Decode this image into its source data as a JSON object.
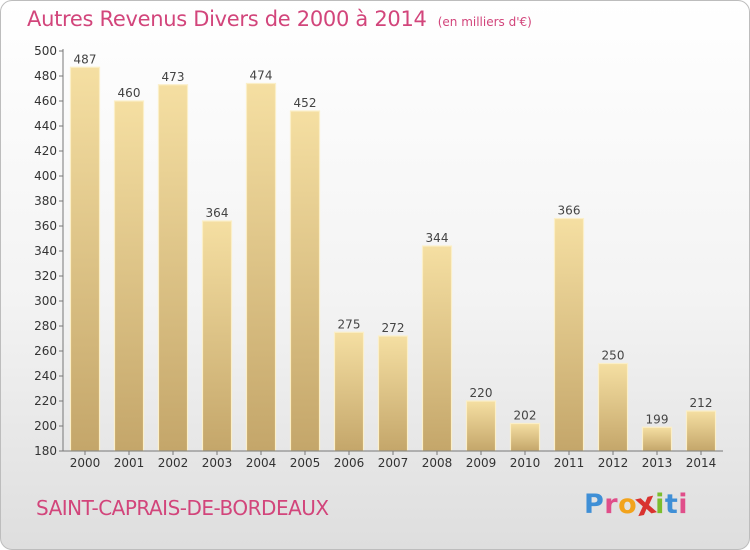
{
  "chart_data": {
    "type": "bar",
    "title": "Autres Revenus Divers de 2000 à 2014",
    "unit": "(en milliers d'€)",
    "categories": [
      "2000",
      "2001",
      "2002",
      "2003",
      "2004",
      "2005",
      "2006",
      "2007",
      "2008",
      "2009",
      "2010",
      "2011",
      "2012",
      "2013",
      "2014"
    ],
    "values": [
      487,
      460,
      473,
      364,
      474,
      452,
      275,
      272,
      344,
      220,
      202,
      366,
      250,
      199,
      212
    ],
    "ylim": [
      180,
      500
    ],
    "yticks": [
      180,
      200,
      220,
      240,
      260,
      280,
      300,
      320,
      340,
      360,
      380,
      400,
      420,
      440,
      460,
      480,
      500
    ],
    "grid": false,
    "bar_color": "#e2c27c"
  },
  "location": "SAINT-CAPRAIS-DE-BORDEAUX",
  "brand": {
    "letters": [
      "P",
      "r",
      "o",
      "x",
      "i",
      "t",
      "i"
    ],
    "colors": [
      "#3f8fd6",
      "#e04e8a",
      "#f2a31c",
      "#d9322f",
      "#7bbd2d",
      "#3f8fd6",
      "#e04e8a"
    ]
  }
}
